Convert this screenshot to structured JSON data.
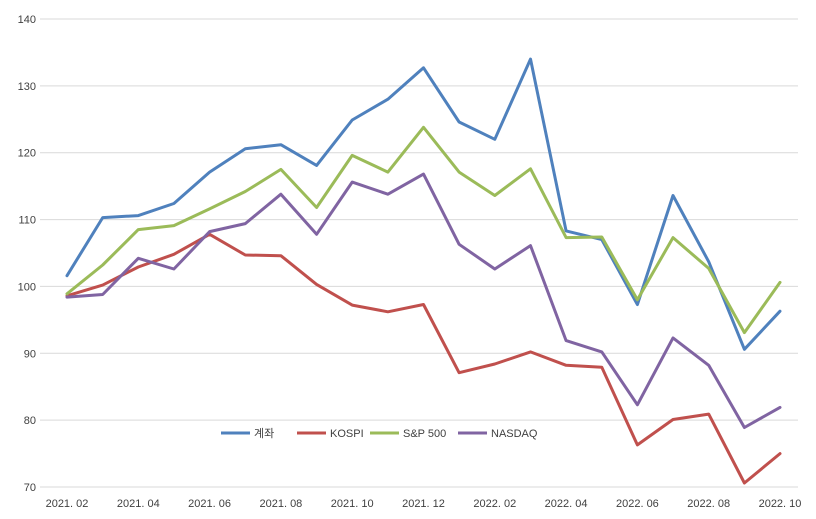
{
  "chart_data": {
    "type": "line",
    "title": "",
    "xlabel": "",
    "ylabel": "",
    "ylim": [
      70,
      140
    ],
    "yticks": [
      70,
      80,
      90,
      100,
      110,
      120,
      130,
      140
    ],
    "grid": "horizontal",
    "legend_position": "inside-bottom-left",
    "x": [
      "2021.02",
      "2021.03",
      "2021.04",
      "2021.05",
      "2021.06",
      "2021.07",
      "2021.08",
      "2021.09",
      "2021.10",
      "2021.11",
      "2021.12",
      "2022.01",
      "2022.02",
      "2022.03",
      "2022.04",
      "2022.05",
      "2022.06",
      "2022.07",
      "2022.08",
      "2022.09",
      "2022.10"
    ],
    "x_tick_labels": [
      "2021. 02",
      "2021. 04",
      "2021. 06",
      "2021. 08",
      "2021. 10",
      "2021. 12",
      "2022. 02",
      "2022. 04",
      "2022. 06",
      "2022. 08",
      "2022. 10"
    ],
    "series": [
      {
        "name": "계좌",
        "color": "#4f81bd",
        "values": [
          101.6,
          110.3,
          110.6,
          112.4,
          117.1,
          120.6,
          121.2,
          118.1,
          124.9,
          128.0,
          132.7,
          124.6,
          122.0,
          134.0,
          108.3,
          107.0,
          97.3,
          113.6,
          103.7,
          90.6,
          96.3
        ]
      },
      {
        "name": "KOSPI",
        "color": "#c0504d",
        "values": [
          98.6,
          100.2,
          102.9,
          104.8,
          107.8,
          104.7,
          104.6,
          100.3,
          97.2,
          96.2,
          97.3,
          87.1,
          88.4,
          90.2,
          88.2,
          87.9,
          76.3,
          80.1,
          80.9,
          70.6,
          75.0
        ]
      },
      {
        "name": "S&P 500",
        "color": "#9bbb59",
        "values": [
          98.9,
          103.2,
          108.5,
          109.1,
          111.6,
          114.2,
          117.5,
          111.8,
          119.6,
          117.1,
          123.8,
          117.1,
          113.6,
          117.6,
          107.3,
          107.4,
          98.0,
          107.3,
          102.7,
          93.1,
          100.6
        ]
      },
      {
        "name": "NASDAQ",
        "color": "#8064a2",
        "values": [
          98.4,
          98.8,
          104.2,
          102.6,
          108.2,
          109.4,
          113.8,
          107.8,
          115.6,
          113.8,
          116.8,
          106.3,
          102.6,
          106.1,
          91.9,
          90.2,
          82.3,
          92.3,
          88.2,
          78.9,
          81.9
        ]
      }
    ]
  }
}
